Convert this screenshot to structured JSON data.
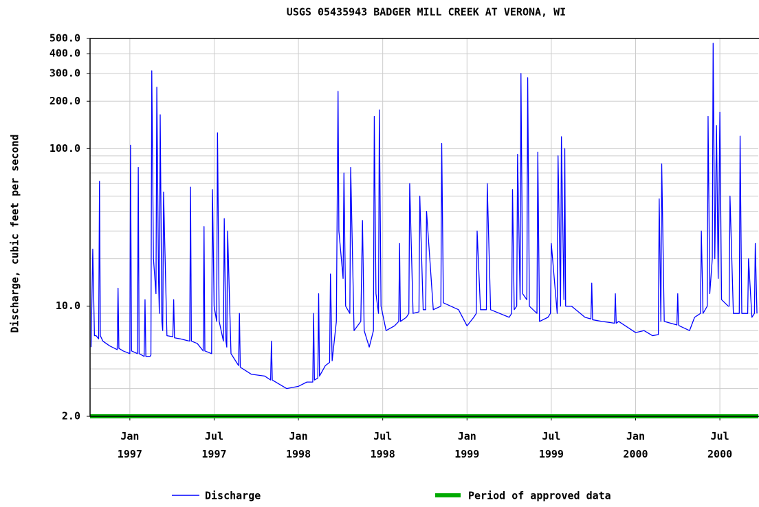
{
  "chart_data": {
    "type": "line",
    "title": "USGS 05435943 BADGER MILL CREEK AT VERONA, WI",
    "y_label": "Discharge, cubic feet per second",
    "log_y": true,
    "grid": true,
    "xlim": [
      1996.764,
      2000.728
    ],
    "ylim": [
      2,
      500
    ],
    "xticks": [
      {
        "value": 1997.0,
        "label": "Jan 1997"
      },
      {
        "value": 1997.5,
        "label": "Jul 1997"
      },
      {
        "value": 1998.0,
        "label": "Jan 1998"
      },
      {
        "value": 1998.5,
        "label": "Jul 1998"
      },
      {
        "value": 1999.0,
        "label": "Jan 1999"
      },
      {
        "value": 1999.5,
        "label": "Jul 1999"
      },
      {
        "value": 2000.0,
        "label": "Jan 2000"
      },
      {
        "value": 2000.5,
        "label": "Jul 2000"
      }
    ],
    "yticks": [
      {
        "value": 2,
        "label": "2.0"
      },
      {
        "value": 10,
        "label": "10.0"
      },
      {
        "value": 100,
        "label": "100.0"
      },
      {
        "value": 200,
        "label": "200.0"
      },
      {
        "value": 300,
        "label": "300.0"
      },
      {
        "value": 400,
        "label": "400.0"
      },
      {
        "value": 500,
        "label": "500.0"
      }
    ],
    "minor_yticks": [
      3,
      4,
      5,
      6,
      7,
      8,
      9,
      20,
      30,
      40,
      50,
      60,
      70,
      80,
      90
    ],
    "series": [
      {
        "name": "Discharge",
        "color": "#0000ff",
        "x": [
          1996.77,
          1996.78,
          1996.79,
          1996.8,
          1996.815,
          1996.82,
          1996.825,
          1996.84,
          1996.88,
          1996.925,
          1996.93,
          1996.935,
          1996.96,
          1997.0,
          1997.004,
          1997.01,
          1997.045,
          1997.05,
          1997.055,
          1997.085,
          1997.09,
          1997.095,
          1997.12,
          1997.125,
          1997.13,
          1997.14,
          1997.155,
          1997.16,
          1997.17,
          1997.175,
          1997.18,
          1997.19,
          1997.195,
          1997.2,
          1997.22,
          1997.255,
          1997.26,
          1997.265,
          1997.3,
          1997.355,
          1997.36,
          1997.365,
          1997.4,
          1997.435,
          1997.44,
          1997.445,
          1997.485,
          1997.49,
          1997.5,
          1997.515,
          1997.52,
          1997.53,
          1997.555,
          1997.56,
          1997.57,
          1997.575,
          1997.58,
          1997.6,
          1997.645,
          1997.65,
          1997.655,
          1997.72,
          1997.8,
          1997.835,
          1997.84,
          1997.845,
          1997.93,
          1998.0,
          1998.05,
          1998.085,
          1998.09,
          1998.095,
          1998.115,
          1998.12,
          1998.125,
          1998.16,
          1998.185,
          1998.19,
          1998.2,
          1998.225,
          1998.235,
          1998.24,
          1998.265,
          1998.27,
          1998.28,
          1998.305,
          1998.31,
          1998.33,
          1998.37,
          1998.38,
          1998.39,
          1998.42,
          1998.445,
          1998.45,
          1998.46,
          1998.475,
          1998.48,
          1998.49,
          1998.52,
          1998.57,
          1998.595,
          1998.6,
          1998.605,
          1998.64,
          1998.655,
          1998.66,
          1998.68,
          1998.715,
          1998.72,
          1998.74,
          1998.755,
          1998.76,
          1998.8,
          1998.845,
          1998.85,
          1998.86,
          1998.95,
          1999.0,
          1999.04,
          1999.055,
          1999.06,
          1999.08,
          1999.115,
          1999.12,
          1999.14,
          1999.25,
          1999.265,
          1999.27,
          1999.28,
          1999.295,
          1999.3,
          1999.315,
          1999.32,
          1999.33,
          1999.355,
          1999.36,
          1999.37,
          1999.415,
          1999.42,
          1999.43,
          1999.48,
          1999.495,
          1999.5,
          1999.535,
          1999.54,
          1999.555,
          1999.56,
          1999.575,
          1999.58,
          1999.585,
          1999.62,
          1999.7,
          1999.735,
          1999.74,
          1999.745,
          1999.8,
          1999.875,
          1999.88,
          1999.885,
          1999.9,
          2000.0,
          2000.05,
          2000.1,
          2000.135,
          2000.14,
          2000.15,
          2000.155,
          2000.17,
          2000.245,
          2000.25,
          2000.255,
          2000.26,
          2000.32,
          2000.35,
          2000.385,
          2000.39,
          2000.4,
          2000.425,
          2000.43,
          2000.44,
          2000.455,
          2000.46,
          2000.47,
          2000.48,
          2000.49,
          2000.5,
          2000.51,
          2000.55,
          2000.555,
          2000.56,
          2000.58,
          2000.615,
          2000.62,
          2000.63,
          2000.665,
          2000.67,
          2000.69,
          2000.705,
          2000.71,
          2000.72
        ],
        "values": [
          5.5,
          23,
          6.5,
          6.5,
          6.2,
          62,
          6.5,
          6.0,
          5.6,
          5.3,
          13,
          5.4,
          5.2,
          5.0,
          105,
          5.2,
          5.0,
          76,
          5.0,
          4.8,
          11,
          4.8,
          4.8,
          4.9,
          312,
          20,
          12,
          245,
          15,
          9,
          164,
          8,
          7,
          53,
          6.5,
          6.4,
          11,
          6.3,
          6.2,
          6.0,
          57,
          6.0,
          5.8,
          5.2,
          32,
          5.2,
          5.0,
          55,
          10,
          8,
          126,
          8,
          6,
          36,
          6,
          5.5,
          30,
          5,
          4.2,
          9,
          4.1,
          3.7,
          3.6,
          3.4,
          6,
          3.4,
          3.0,
          3.1,
          3.3,
          3.3,
          9,
          3.4,
          3.5,
          12,
          3.6,
          4.2,
          4.4,
          16,
          4.5,
          8,
          231,
          30,
          15,
          70,
          10,
          9,
          76,
          7,
          8,
          35,
          7,
          5.5,
          7,
          160,
          12,
          9,
          176,
          10,
          7,
          7.5,
          8,
          25,
          8,
          8.5,
          9,
          60,
          9,
          9.2,
          50,
          9.5,
          9.5,
          40,
          9.5,
          10,
          108,
          10.5,
          9.5,
          7.5,
          8.5,
          9,
          30,
          9.5,
          9.5,
          60,
          9.5,
          8.5,
          9,
          55,
          9.5,
          10,
          92,
          11,
          300,
          12,
          11,
          282,
          10,
          9,
          95,
          8,
          8.5,
          9,
          25,
          9,
          90,
          10,
          119,
          11,
          100,
          10,
          10,
          8.5,
          8.3,
          14,
          8.2,
          8,
          7.8,
          12,
          7.8,
          8,
          6.8,
          7,
          6.5,
          6.6,
          48,
          8,
          80,
          8,
          7.6,
          12,
          7.6,
          7.5,
          7.0,
          8.5,
          9,
          30,
          9,
          10,
          160,
          12,
          20,
          466,
          20,
          140,
          15,
          170,
          11,
          10,
          10,
          50,
          9,
          9,
          120,
          9,
          9,
          20,
          8.5,
          9,
          25,
          9
        ]
      },
      {
        "name": "Period of approved data",
        "color": "#00aa00",
        "x": [
          1996.764,
          2000.728
        ],
        "values": [
          2,
          2
        ]
      }
    ]
  }
}
